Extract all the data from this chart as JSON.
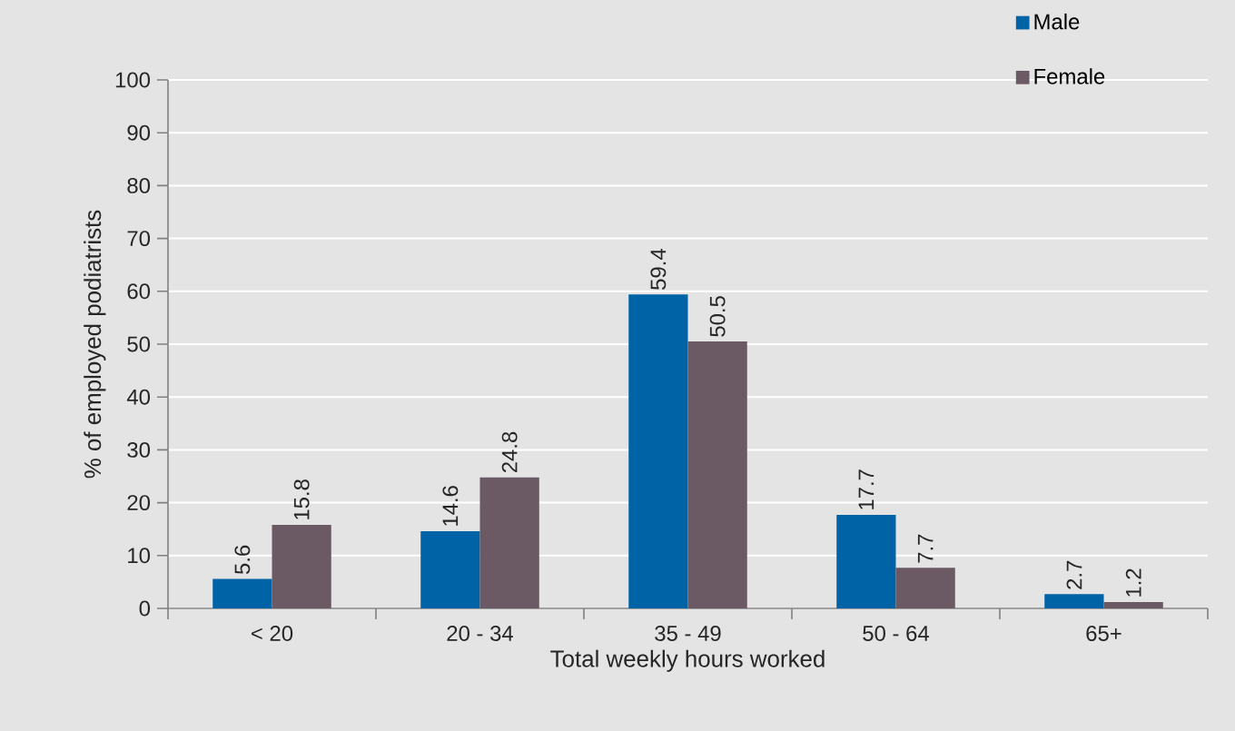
{
  "chart_data": {
    "type": "bar",
    "xlabel": "Total weekly hours worked",
    "ylabel": "% of employed podiatrists",
    "categories": [
      "< 20",
      "20 - 34",
      "35 - 49",
      "50 - 64",
      "65+"
    ],
    "series": [
      {
        "name": "Male",
        "color": "#0063a6",
        "values": [
          5.6,
          14.6,
          59.4,
          17.7,
          2.7
        ]
      },
      {
        "name": "Female",
        "color": "#6b5a63",
        "values": [
          15.8,
          24.8,
          50.5,
          7.7,
          1.2
        ]
      }
    ],
    "ylim": [
      0,
      100
    ],
    "yticks": [
      0,
      10,
      20,
      30,
      40,
      50,
      60,
      70,
      80,
      90,
      100
    ],
    "grid": "y",
    "legend": "top right",
    "data_labels": true
  }
}
